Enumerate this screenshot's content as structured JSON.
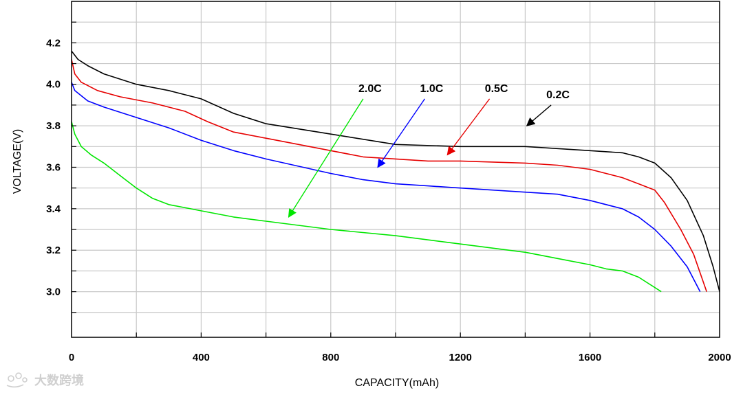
{
  "chart_data": {
    "type": "line",
    "title": "",
    "xlabel": "CAPACITY(mAh)",
    "ylabel": "VOLTAGE(V)",
    "xlim": [
      0,
      2000
    ],
    "ylim": [
      2.78,
      4.4
    ],
    "xticks": [
      0,
      400,
      800,
      1200,
      1600,
      2000
    ],
    "xtick_labels": [
      "0",
      "400",
      "800",
      "1200",
      "1600",
      "2000"
    ],
    "yticks": [
      3.0,
      3.2,
      3.4,
      3.6,
      3.8,
      4.0,
      4.2
    ],
    "ytick_labels": [
      "3.0",
      "3.2",
      "3.4",
      "3.6",
      "3.8",
      "4.0",
      "4.2"
    ],
    "grid": true,
    "series": [
      {
        "name": "0.2C",
        "color": "#000000",
        "points": [
          [
            0,
            4.16
          ],
          [
            20,
            4.12
          ],
          [
            50,
            4.09
          ],
          [
            100,
            4.05
          ],
          [
            200,
            4.0
          ],
          [
            300,
            3.97
          ],
          [
            400,
            3.93
          ],
          [
            500,
            3.86
          ],
          [
            600,
            3.81
          ],
          [
            800,
            3.76
          ],
          [
            1000,
            3.71
          ],
          [
            1200,
            3.7
          ],
          [
            1400,
            3.7
          ],
          [
            1500,
            3.69
          ],
          [
            1600,
            3.68
          ],
          [
            1700,
            3.67
          ],
          [
            1750,
            3.65
          ],
          [
            1800,
            3.62
          ],
          [
            1850,
            3.55
          ],
          [
            1900,
            3.44
          ],
          [
            1950,
            3.27
          ],
          [
            1980,
            3.12
          ],
          [
            2000,
            3.0
          ]
        ]
      },
      {
        "name": "0.5C",
        "color": "#e60000",
        "points": [
          [
            0,
            4.12
          ],
          [
            10,
            4.05
          ],
          [
            30,
            4.01
          ],
          [
            80,
            3.97
          ],
          [
            150,
            3.94
          ],
          [
            250,
            3.91
          ],
          [
            350,
            3.87
          ],
          [
            420,
            3.82
          ],
          [
            500,
            3.77
          ],
          [
            600,
            3.74
          ],
          [
            800,
            3.68
          ],
          [
            900,
            3.65
          ],
          [
            1000,
            3.64
          ],
          [
            1100,
            3.63
          ],
          [
            1200,
            3.63
          ],
          [
            1400,
            3.62
          ],
          [
            1500,
            3.61
          ],
          [
            1600,
            3.59
          ],
          [
            1700,
            3.55
          ],
          [
            1750,
            3.52
          ],
          [
            1800,
            3.49
          ],
          [
            1830,
            3.43
          ],
          [
            1880,
            3.3
          ],
          [
            1920,
            3.18
          ],
          [
            1960,
            3.0
          ]
        ]
      },
      {
        "name": "1.0C",
        "color": "#0000ff",
        "points": [
          [
            0,
            4.01
          ],
          [
            10,
            3.97
          ],
          [
            50,
            3.92
          ],
          [
            100,
            3.89
          ],
          [
            200,
            3.84
          ],
          [
            300,
            3.79
          ],
          [
            400,
            3.73
          ],
          [
            500,
            3.68
          ],
          [
            600,
            3.64
          ],
          [
            800,
            3.57
          ],
          [
            900,
            3.54
          ],
          [
            1000,
            3.52
          ],
          [
            1100,
            3.51
          ],
          [
            1200,
            3.5
          ],
          [
            1300,
            3.49
          ],
          [
            1400,
            3.48
          ],
          [
            1500,
            3.47
          ],
          [
            1600,
            3.44
          ],
          [
            1700,
            3.4
          ],
          [
            1750,
            3.36
          ],
          [
            1800,
            3.3
          ],
          [
            1850,
            3.22
          ],
          [
            1900,
            3.12
          ],
          [
            1940,
            3.0
          ]
        ]
      },
      {
        "name": "2.0C",
        "color": "#00e600",
        "points": [
          [
            0,
            3.82
          ],
          [
            10,
            3.76
          ],
          [
            30,
            3.7
          ],
          [
            60,
            3.66
          ],
          [
            100,
            3.62
          ],
          [
            150,
            3.56
          ],
          [
            200,
            3.5
          ],
          [
            250,
            3.45
          ],
          [
            300,
            3.42
          ],
          [
            400,
            3.39
          ],
          [
            500,
            3.36
          ],
          [
            600,
            3.34
          ],
          [
            800,
            3.3
          ],
          [
            1000,
            3.27
          ],
          [
            1200,
            3.23
          ],
          [
            1400,
            3.19
          ],
          [
            1500,
            3.16
          ],
          [
            1600,
            3.13
          ],
          [
            1650,
            3.11
          ],
          [
            1700,
            3.1
          ],
          [
            1750,
            3.07
          ],
          [
            1820,
            3.0
          ]
        ]
      }
    ],
    "annotations": [
      {
        "text": "2.0C",
        "series": "2.0C",
        "arrow_from": [
          900,
          3.93
        ],
        "arrow_to": [
          670,
          3.36
        ]
      },
      {
        "text": "1.0C",
        "series": "1.0C",
        "arrow_from": [
          1090,
          3.93
        ],
        "arrow_to": [
          945,
          3.6
        ]
      },
      {
        "text": "0.5C",
        "series": "0.5C",
        "arrow_from": [
          1290,
          3.93
        ],
        "arrow_to": [
          1160,
          3.66
        ]
      },
      {
        "text": "0.2C",
        "series": "0.2C",
        "arrow_from": [
          1480,
          3.9
        ],
        "arrow_to": [
          1405,
          3.8
        ]
      }
    ]
  },
  "watermark": {
    "text": "大数跨境"
  }
}
